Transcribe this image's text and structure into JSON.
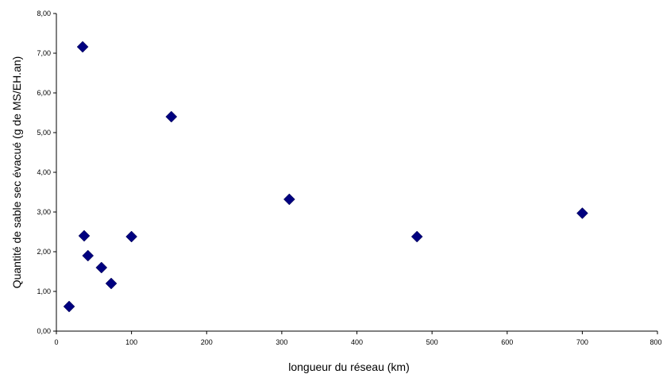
{
  "chart_data": {
    "type": "scatter",
    "title": "",
    "xlabel": "longueur du réseau (km)",
    "ylabel": "Quantité de sable sec évacué (g de MS/EH.an)",
    "xlim": [
      0,
      800
    ],
    "ylim": [
      0,
      8
    ],
    "x_ticks": [
      0,
      100,
      200,
      300,
      400,
      500,
      600,
      700,
      800
    ],
    "x_tick_labels": [
      "0",
      "100",
      "200",
      "300",
      "400",
      "500",
      "600",
      "700",
      "800"
    ],
    "y_ticks": [
      0,
      1,
      2,
      3,
      4,
      5,
      6,
      7,
      8
    ],
    "y_tick_labels": [
      "0,00",
      "1,00",
      "2,00",
      "3,00",
      "4,00",
      "5,00",
      "6,00",
      "7,00",
      "8,00"
    ],
    "grid": false,
    "marker": "diamond",
    "marker_color": "#00007f",
    "points": [
      {
        "x": 17,
        "y": 0.62
      },
      {
        "x": 35,
        "y": 7.16
      },
      {
        "x": 37,
        "y": 2.4
      },
      {
        "x": 42,
        "y": 1.9
      },
      {
        "x": 60,
        "y": 1.6
      },
      {
        "x": 73,
        "y": 1.2
      },
      {
        "x": 100,
        "y": 2.38
      },
      {
        "x": 153,
        "y": 5.4
      },
      {
        "x": 310,
        "y": 3.32
      },
      {
        "x": 480,
        "y": 2.38
      },
      {
        "x": 700,
        "y": 2.97
      }
    ]
  }
}
